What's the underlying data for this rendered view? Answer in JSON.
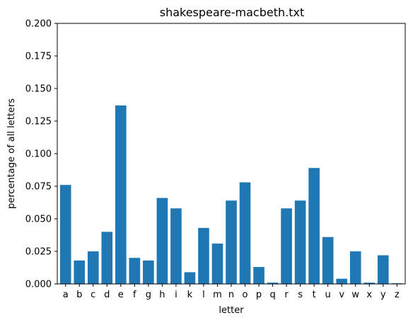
{
  "chart_data": {
    "type": "bar",
    "title": "shakespeare-macbeth.txt",
    "xlabel": "letter",
    "ylabel": "percentage of all letters",
    "categories": [
      "a",
      "b",
      "c",
      "d",
      "e",
      "f",
      "g",
      "h",
      "i",
      "k",
      "l",
      "m",
      "n",
      "o",
      "p",
      "q",
      "r",
      "s",
      "t",
      "u",
      "v",
      "w",
      "x",
      "y",
      "z"
    ],
    "values": [
      0.076,
      0.018,
      0.025,
      0.04,
      0.137,
      0.02,
      0.018,
      0.066,
      0.058,
      0.009,
      0.043,
      0.031,
      0.064,
      0.078,
      0.013,
      0.001,
      0.058,
      0.064,
      0.089,
      0.036,
      0.004,
      0.025,
      0.001,
      0.022,
      0.0005
    ],
    "ylim": [
      0,
      0.2
    ],
    "yticks": [
      "0.000",
      "0.025",
      "0.050",
      "0.075",
      "0.100",
      "0.125",
      "0.150",
      "0.175",
      "0.200"
    ],
    "bar_color": "#1f77b4",
    "grid": false,
    "legend": "none"
  }
}
